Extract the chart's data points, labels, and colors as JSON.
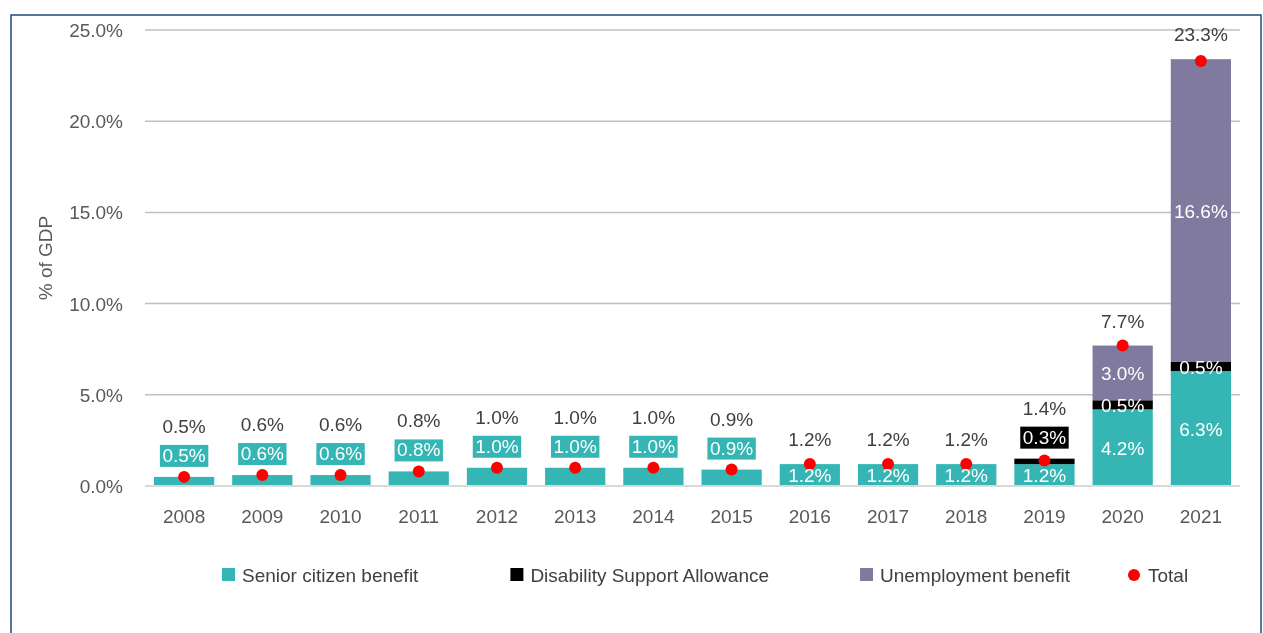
{
  "chart_data": {
    "type": "bar",
    "stacked": true,
    "ylabel": "% of GDP",
    "categories": [
      "2008",
      "2009",
      "2010",
      "2011",
      "2012",
      "2013",
      "2014",
      "2015",
      "2016",
      "2017",
      "2018",
      "2019",
      "2020",
      "2021"
    ],
    "series": [
      {
        "name": "Senior citizen benefit",
        "color": "#35b6b4",
        "values": [
          0.5,
          0.6,
          0.6,
          0.8,
          1.0,
          1.0,
          1.0,
          0.9,
          1.2,
          1.2,
          1.2,
          1.2,
          4.2,
          6.3
        ],
        "value_labels": [
          "0.5%",
          "0.6%",
          "0.6%",
          "0.8%",
          "1.0%",
          "1.0%",
          "1.0%",
          "0.9%",
          "1.2%",
          "1.2%",
          "1.2%",
          "1.2%",
          "4.2%",
          "6.3%"
        ]
      },
      {
        "name": "Disability Support Allowance",
        "color": "#000000",
        "values": [
          null,
          null,
          null,
          null,
          null,
          null,
          null,
          null,
          null,
          null,
          null,
          0.3,
          0.5,
          0.5
        ],
        "value_labels": [
          null,
          null,
          null,
          null,
          null,
          null,
          null,
          null,
          null,
          null,
          null,
          "0.3%",
          "0.5%",
          "0.5%"
        ]
      },
      {
        "name": "Unemployment benefit",
        "color": "#7f7a9e",
        "values": [
          null,
          null,
          null,
          null,
          null,
          null,
          null,
          null,
          null,
          null,
          null,
          null,
          3.0,
          16.6
        ],
        "value_labels": [
          null,
          null,
          null,
          null,
          null,
          null,
          null,
          null,
          null,
          null,
          null,
          null,
          "3.0%",
          "16.6%"
        ]
      },
      {
        "name": "Total",
        "type": "scatter",
        "marker": "circle",
        "color": "#ff0000",
        "values": [
          0.5,
          0.6,
          0.6,
          0.8,
          1.0,
          1.0,
          1.0,
          0.9,
          1.2,
          1.2,
          1.2,
          1.4,
          7.7,
          23.3
        ],
        "value_labels": [
          "0.5%",
          "0.6%",
          "0.6%",
          "0.8%",
          "1.0%",
          "1.0%",
          "1.0%",
          "0.9%",
          "1.2%",
          "1.2%",
          "1.2%",
          "1.4%",
          "7.7%",
          "23.3%"
        ]
      }
    ],
    "ylim": [
      0,
      25
    ],
    "yticks": [
      {
        "value": 0,
        "label": "0.0%"
      },
      {
        "value": 5,
        "label": "5.0%"
      },
      {
        "value": 10,
        "label": "10.0%"
      },
      {
        "value": 15,
        "label": "15.0%"
      },
      {
        "value": 20,
        "label": "20.0%"
      },
      {
        "value": 25,
        "label": "25.0%"
      }
    ],
    "grid": "y",
    "legend": "bottom"
  }
}
